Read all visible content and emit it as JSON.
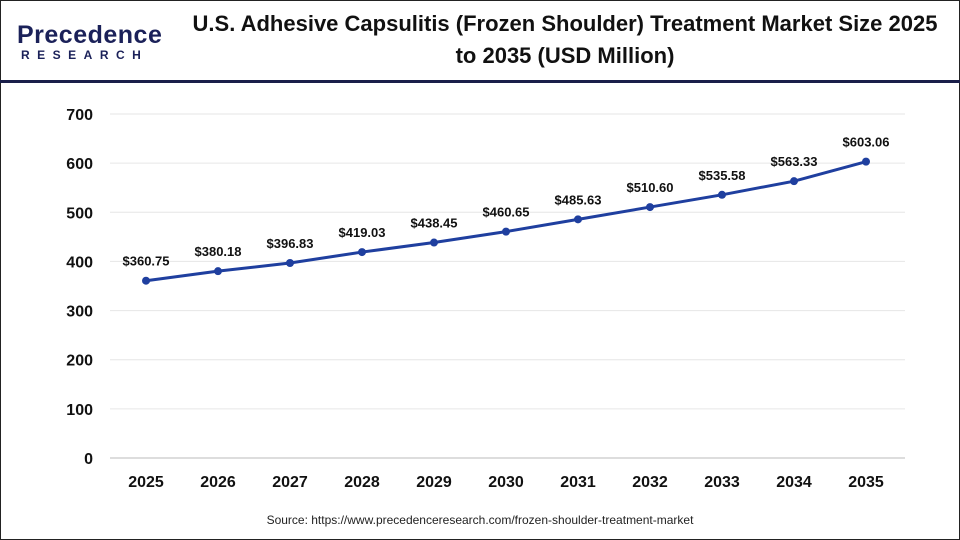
{
  "logo": {
    "line1": "Precedence",
    "line2": "RESEARCH"
  },
  "source": "Source: https://www.precedenceresearch.com/frozen-shoulder-treatment-market",
  "chart_data": {
    "type": "line",
    "title": "U.S. Adhesive Capsulitis (Frozen Shoulder) Treatment Market Size 2025 to 2035 (USD Million)",
    "xlabel": "",
    "ylabel": "",
    "categories": [
      "2025",
      "2026",
      "2027",
      "2028",
      "2029",
      "2030",
      "2031",
      "2032",
      "2033",
      "2034",
      "2035"
    ],
    "values": [
      360.75,
      380.18,
      396.83,
      419.03,
      438.45,
      460.65,
      485.63,
      510.6,
      535.58,
      563.33,
      603.06
    ],
    "data_labels": [
      "$360.75",
      "$380.18",
      "$396.83",
      "$419.03",
      "$438.45",
      "$460.65",
      "$485.63",
      "$510.60",
      "$535.58",
      "$563.33",
      "$603.06"
    ],
    "ylim": [
      0,
      700
    ],
    "yticks": [
      0,
      100,
      200,
      300,
      400,
      500,
      600,
      700
    ],
    "grid": true,
    "line_color": "#1f3f9f"
  }
}
